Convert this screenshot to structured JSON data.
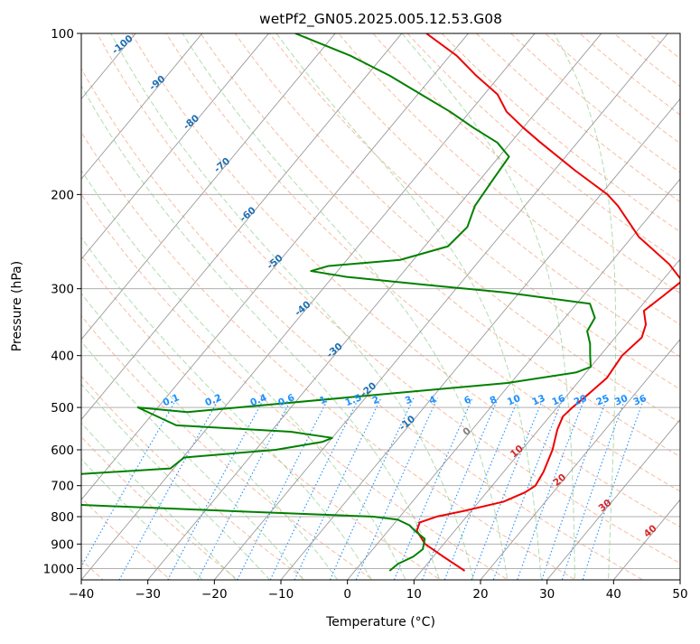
{
  "chart_data": {
    "type": "line",
    "subtype": "skew-t log-p diagram",
    "title": "wetPf2_GN05.2025.005.12.53.G08",
    "xlabel": "Temperature (°C)",
    "ylabel": "Pressure (hPa)",
    "xlim": [
      -40,
      50
    ],
    "ylim": [
      1050,
      100
    ],
    "yscale": "log",
    "x_ticks": [
      "−40",
      "−30",
      "−20",
      "−10",
      "0",
      "10",
      "20",
      "30",
      "40",
      "50"
    ],
    "x_tick_values": [
      -40,
      -30,
      -20,
      -10,
      0,
      10,
      20,
      30,
      40,
      50
    ],
    "y_ticks": [
      "100",
      "200",
      "300",
      "400",
      "500",
      "600",
      "700",
      "800",
      "900",
      "1000"
    ],
    "y_tick_values": [
      100,
      200,
      300,
      400,
      500,
      600,
      700,
      800,
      900,
      1000
    ],
    "grid": true,
    "colors": {
      "temperature": "#ee0000",
      "dewpoint": "#008000",
      "dry_adiabats": "#f4a582",
      "moist_adiabats": "#8fcf8f",
      "mixing_ratio": "#1e90ff",
      "isotherms": "#7f7f7f",
      "isotherm_label_cold": "#1f6fb2",
      "isotherm_label_warm": "#d62728",
      "mixing_label": "#1e90ff"
    },
    "series": [
      {
        "name": "Temperature",
        "points": [
          [
            1010,
            16.5
          ],
          [
            950,
            11.5
          ],
          [
            900,
            7.2
          ],
          [
            850,
            4.3
          ],
          [
            820,
            3.7
          ],
          [
            800,
            5.5
          ],
          [
            780,
            9.0
          ],
          [
            750,
            13.7
          ],
          [
            720,
            15.8
          ],
          [
            700,
            16.5
          ],
          [
            660,
            16.0
          ],
          [
            600,
            14.6
          ],
          [
            550,
            12.8
          ],
          [
            520,
            12.0
          ],
          [
            500,
            12.3
          ],
          [
            470,
            13.1
          ],
          [
            440,
            13.8
          ],
          [
            400,
            13.3
          ],
          [
            370,
            14.0
          ],
          [
            350,
            13.0
          ],
          [
            330,
            11.0
          ],
          [
            310,
            12.0
          ],
          [
            290,
            13.0
          ],
          [
            270,
            9.0
          ],
          [
            240,
            1.0
          ],
          [
            210,
            -6.0
          ],
          [
            200,
            -9.0
          ],
          [
            180,
            -17.0
          ],
          [
            160,
            -25.5
          ],
          [
            150,
            -30.0
          ],
          [
            140,
            -34.5
          ],
          [
            130,
            -38.0
          ],
          [
            120,
            -43.5
          ],
          [
            110,
            -49.0
          ],
          [
            100,
            -56.3
          ]
        ]
      },
      {
        "name": "Dewpoint",
        "points": [
          [
            1010,
            5.2
          ],
          [
            980,
            5.6
          ],
          [
            950,
            7.0
          ],
          [
            920,
            7.5
          ],
          [
            880,
            6.5
          ],
          [
            850,
            4.0
          ],
          [
            830,
            2.5
          ],
          [
            810,
            0.0
          ],
          [
            800,
            -4.0
          ],
          [
            780,
            -27.0
          ],
          [
            760,
            -50.0
          ],
          [
            700,
            -80.0
          ],
          [
            650,
            -40.5
          ],
          [
            620,
            -39.8
          ],
          [
            600,
            -27.0
          ],
          [
            580,
            -21.0
          ],
          [
            570,
            -20.0
          ],
          [
            555,
            -27.0
          ],
          [
            540,
            -45.0
          ],
          [
            500,
            -53.0
          ],
          [
            510,
            -45.0
          ],
          [
            470,
            -16.0
          ],
          [
            450,
            -0.5
          ],
          [
            430,
            8.5
          ],
          [
            420,
            10.0
          ],
          [
            400,
            8.5
          ],
          [
            380,
            7.0
          ],
          [
            360,
            5.0
          ],
          [
            340,
            4.5
          ],
          [
            320,
            2.0
          ],
          [
            305,
            -12.0
          ],
          [
            295,
            -25.0
          ],
          [
            285,
            -38.0
          ],
          [
            278,
            -44.0
          ],
          [
            272,
            -42.0
          ],
          [
            265,
            -32.0
          ],
          [
            250,
            -26.5
          ],
          [
            230,
            -26.0
          ],
          [
            210,
            -27.5
          ],
          [
            190,
            -28.0
          ],
          [
            170,
            -28.5
          ],
          [
            160,
            -32.0
          ],
          [
            150,
            -37.5
          ],
          [
            140,
            -43.0
          ],
          [
            130,
            -49.5
          ],
          [
            120,
            -56.5
          ],
          [
            110,
            -65.0
          ],
          [
            100,
            -76.0
          ]
        ]
      }
    ],
    "isotherm_labels": [
      "-100",
      "-90",
      "-80",
      "-70",
      "-60",
      "-50",
      "-40",
      "-30",
      "-20",
      "-10",
      "0",
      "10",
      "20",
      "30",
      "40"
    ],
    "mixing_ratio_labels": [
      "0.1",
      "0.2",
      "0.4",
      "0.6",
      "1",
      "1.5",
      "2",
      "3",
      "4",
      "6",
      "8",
      "10",
      "13",
      "16",
      "20",
      "25",
      "30",
      "36"
    ]
  }
}
